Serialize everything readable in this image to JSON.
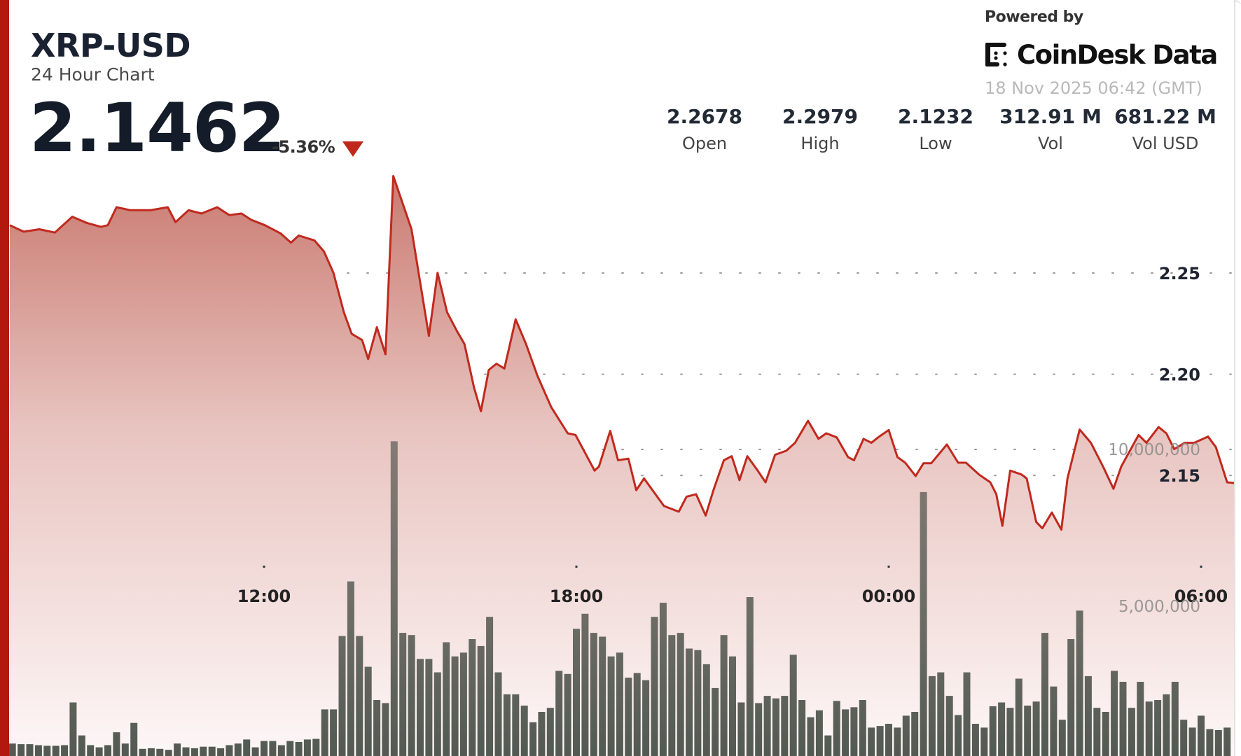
{
  "header": {
    "symbol": "XRP-USD",
    "subtitle": "24 Hour Chart",
    "price": "2.1462",
    "change": "-5.36%",
    "change_direction_icon": "triangle-down-icon",
    "powered_by": "Powered by",
    "brand": "CoinDesk Data",
    "timestamp": "18 Nov 2025 06:42 (GMT)"
  },
  "stats": [
    {
      "value": "2.2678",
      "label": "Open"
    },
    {
      "value": "2.2979",
      "label": "High"
    },
    {
      "value": "2.1232",
      "label": "Low"
    },
    {
      "value": "312.91 M",
      "label": "Vol"
    },
    {
      "value": "681.22 M",
      "label": "Vol USD"
    }
  ],
  "colors": {
    "accent": "#b3180f",
    "line": "#c0291e",
    "fill_top": "#c8766c",
    "volume_bar": "#575c55",
    "down": "#c0281c"
  },
  "chart_data": {
    "type": "area",
    "grid": "dotted horizontal",
    "price_axis": {
      "ticks": [
        "2.25",
        "2.20",
        "2.15"
      ],
      "tick_values": [
        2.25,
        2.2,
        2.15
      ],
      "side": "right"
    },
    "volume_axis": {
      "ticks": [
        "10,000,000",
        "5,000,000"
      ],
      "tick_values": [
        10000000,
        5000000
      ],
      "side": "right"
    },
    "x_axis": {
      "ticks": [
        "12:00",
        "18:00",
        "00:00",
        "06:00"
      ]
    },
    "price_series": [
      [
        "07:07",
        2.2736
      ],
      [
        "07:23",
        2.2704
      ],
      [
        "07:41",
        2.2716
      ],
      [
        "07:59",
        2.27
      ],
      [
        "08:19",
        2.2778
      ],
      [
        "08:36",
        2.2747
      ],
      [
        "08:52",
        2.2728
      ],
      [
        "09:00",
        2.2736
      ],
      [
        "09:10",
        2.2825
      ],
      [
        "09:26",
        2.281
      ],
      [
        "09:49",
        2.281
      ],
      [
        "10:09",
        2.2825
      ],
      [
        "10:18",
        2.2751
      ],
      [
        "10:33",
        2.281
      ],
      [
        "10:48",
        2.2794
      ],
      [
        "11:06",
        2.2825
      ],
      [
        "11:20",
        2.2786
      ],
      [
        "11:34",
        2.2794
      ],
      [
        "11:45",
        2.2763
      ],
      [
        "12:01",
        2.2736
      ],
      [
        "12:19",
        2.2696
      ],
      [
        "12:31",
        2.265
      ],
      [
        "12:40",
        2.2685
      ],
      [
        "12:58",
        2.2661
      ],
      [
        "13:09",
        2.2607
      ],
      [
        "13:20",
        2.2501
      ],
      [
        "13:32",
        2.2306
      ],
      [
        "13:41",
        2.22
      ],
      [
        "13:53",
        2.2169
      ],
      [
        "14:00",
        2.2075
      ],
      [
        "14:10",
        2.2232
      ],
      [
        "14:20",
        2.2099
      ],
      [
        "14:29",
        2.2979
      ],
      [
        "14:50",
        2.2716
      ],
      [
        "15:10",
        2.2189
      ],
      [
        "15:20",
        2.2501
      ],
      [
        "15:31",
        2.2306
      ],
      [
        "15:42",
        2.2216
      ],
      [
        "15:51",
        2.2149
      ],
      [
        "16:02",
        2.1935
      ],
      [
        "16:10",
        2.1817
      ],
      [
        "16:19",
        2.2021
      ],
      [
        "16:28",
        2.2052
      ],
      [
        "16:37",
        2.2028
      ],
      [
        "16:50",
        2.2271
      ],
      [
        "17:02",
        2.2149
      ],
      [
        "17:15",
        2.1993
      ],
      [
        "17:31",
        2.1837
      ],
      [
        "17:50",
        2.1708
      ],
      [
        "17:59",
        2.17
      ],
      [
        "18:21",
        2.1524
      ],
      [
        "18:26",
        2.1544
      ],
      [
        "18:39",
        2.172
      ],
      [
        "18:48",
        2.1575
      ],
      [
        "19:00",
        2.1583
      ],
      [
        "19:09",
        2.1427
      ],
      [
        "19:18",
        2.1485
      ],
      [
        "19:41",
        2.1349
      ],
      [
        "19:58",
        2.1321
      ],
      [
        "20:07",
        2.1395
      ],
      [
        "20:18",
        2.1407
      ],
      [
        "20:29",
        2.1302
      ],
      [
        "20:38",
        2.1427
      ],
      [
        "20:50",
        2.1575
      ],
      [
        "20:59",
        2.1595
      ],
      [
        "21:08",
        2.1477
      ],
      [
        "21:17",
        2.1595
      ],
      [
        "21:29",
        2.1524
      ],
      [
        "21:38",
        2.1466
      ],
      [
        "21:49",
        2.1602
      ],
      [
        "22:02",
        2.1622
      ],
      [
        "22:12",
        2.1661
      ],
      [
        "22:27",
        2.177
      ],
      [
        "22:39",
        2.1681
      ],
      [
        "22:48",
        2.1708
      ],
      [
        "23:00",
        2.1688
      ],
      [
        "23:13",
        2.1591
      ],
      [
        "23:20",
        2.1575
      ],
      [
        "23:31",
        2.1681
      ],
      [
        "23:40",
        2.1661
      ],
      [
        "23:49",
        2.1692
      ],
      [
        "00:00",
        2.1724
      ],
      [
        "00:10",
        2.1591
      ],
      [
        "00:19",
        2.1563
      ],
      [
        "00:31",
        2.1497
      ],
      [
        "00:40",
        2.156
      ],
      [
        "00:49",
        2.156
      ],
      [
        "01:07",
        2.1653
      ],
      [
        "01:20",
        2.1563
      ],
      [
        "01:29",
        2.1563
      ],
      [
        "01:44",
        2.1505
      ],
      [
        "01:57",
        2.1466
      ],
      [
        "02:04",
        2.1407
      ],
      [
        "02:11",
        2.1251
      ],
      [
        "02:20",
        2.1524
      ],
      [
        "02:33",
        2.1505
      ],
      [
        "02:39",
        2.1485
      ],
      [
        "02:50",
        2.127
      ],
      [
        "02:57",
        2.1239
      ],
      [
        "03:08",
        2.1317
      ],
      [
        "03:19",
        2.1232
      ],
      [
        "03:26",
        2.1485
      ],
      [
        "03:40",
        2.1727
      ],
      [
        "03:53",
        2.1661
      ],
      [
        "04:07",
        2.1544
      ],
      [
        "04:19",
        2.1434
      ],
      [
        "04:28",
        2.1544
      ],
      [
        "04:48",
        2.17
      ],
      [
        "04:57",
        2.1661
      ],
      [
        "05:11",
        2.1739
      ],
      [
        "05:20",
        2.1708
      ],
      [
        "05:29",
        2.163
      ],
      [
        "05:41",
        2.1661
      ],
      [
        "05:52",
        2.1661
      ],
      [
        "06:08",
        2.1692
      ],
      [
        "06:17",
        2.164
      ],
      [
        "06:30",
        2.1466
      ],
      [
        "06:39",
        2.1462
      ]
    ],
    "volume_series_millions": [
      [
        "07:10",
        0.62
      ],
      [
        "07:20",
        0.6
      ],
      [
        "07:30",
        0.6
      ],
      [
        "07:40",
        0.57
      ],
      [
        "07:50",
        0.55
      ],
      [
        "08:00",
        0.55
      ],
      [
        "08:10",
        0.57
      ],
      [
        "08:20",
        1.93
      ],
      [
        "08:30",
        0.88
      ],
      [
        "08:40",
        0.57
      ],
      [
        "08:50",
        0.5
      ],
      [
        "09:00",
        0.57
      ],
      [
        "09:10",
        0.98
      ],
      [
        "09:20",
        0.62
      ],
      [
        "09:30",
        1.28
      ],
      [
        "09:40",
        0.45
      ],
      [
        "09:50",
        0.47
      ],
      [
        "10:00",
        0.45
      ],
      [
        "10:10",
        0.42
      ],
      [
        "10:20",
        0.62
      ],
      [
        "10:30",
        0.5
      ],
      [
        "10:40",
        0.47
      ],
      [
        "10:50",
        0.52
      ],
      [
        "11:00",
        0.52
      ],
      [
        "11:10",
        0.47
      ],
      [
        "11:20",
        0.57
      ],
      [
        "11:30",
        0.62
      ],
      [
        "11:40",
        0.75
      ],
      [
        "11:50",
        0.5
      ],
      [
        "12:00",
        0.7
      ],
      [
        "12:10",
        0.7
      ],
      [
        "12:20",
        0.57
      ],
      [
        "12:30",
        0.7
      ],
      [
        "12:40",
        0.67
      ],
      [
        "12:50",
        0.75
      ],
      [
        "13:00",
        0.77
      ],
      [
        "13:10",
        1.71
      ],
      [
        "13:20",
        1.71
      ],
      [
        "13:30",
        4.05
      ],
      [
        "13:40",
        5.79
      ],
      [
        "13:50",
        4.05
      ],
      [
        "14:00",
        3.07
      ],
      [
        "14:10",
        2.01
      ],
      [
        "14:20",
        1.91
      ],
      [
        "14:30",
        10.26
      ],
      [
        "14:40",
        4.15
      ],
      [
        "14:50",
        4.08
      ],
      [
        "15:00",
        3.32
      ],
      [
        "15:10",
        3.32
      ],
      [
        "15:20",
        2.89
      ],
      [
        "15:30",
        3.85
      ],
      [
        "15:40",
        3.4
      ],
      [
        "15:50",
        3.52
      ],
      [
        "16:00",
        3.95
      ],
      [
        "16:10",
        3.73
      ],
      [
        "16:20",
        4.66
      ],
      [
        "16:30",
        2.89
      ],
      [
        "16:40",
        2.19
      ],
      [
        "16:50",
        2.19
      ],
      [
        "17:00",
        1.83
      ],
      [
        "17:10",
        1.3
      ],
      [
        "17:20",
        1.63
      ],
      [
        "17:30",
        1.76
      ],
      [
        "17:40",
        2.94
      ],
      [
        "17:50",
        2.84
      ],
      [
        "18:00",
        4.28
      ],
      [
        "18:10",
        4.76
      ],
      [
        "18:20",
        4.15
      ],
      [
        "18:30",
        4.03
      ],
      [
        "18:40",
        3.4
      ],
      [
        "18:50",
        3.52
      ],
      [
        "19:00",
        2.72
      ],
      [
        "19:10",
        2.87
      ],
      [
        "19:20",
        2.64
      ],
      [
        "19:30",
        4.66
      ],
      [
        "19:40",
        5.11
      ],
      [
        "19:50",
        4.08
      ],
      [
        "20:00",
        4.15
      ],
      [
        "20:10",
        3.65
      ],
      [
        "20:20",
        3.6
      ],
      [
        "20:30",
        3.15
      ],
      [
        "20:40",
        2.39
      ],
      [
        "20:50",
        4.08
      ],
      [
        "21:00",
        3.4
      ],
      [
        "21:10",
        1.93
      ],
      [
        "21:20",
        5.29
      ],
      [
        "21:30",
        1.91
      ],
      [
        "21:40",
        2.14
      ],
      [
        "21:50",
        2.06
      ],
      [
        "22:00",
        2.14
      ],
      [
        "22:10",
        3.45
      ],
      [
        "22:20",
        2.01
      ],
      [
        "22:30",
        1.46
      ],
      [
        "22:40",
        1.68
      ],
      [
        "22:50",
        0.88
      ],
      [
        "23:00",
        1.98
      ],
      [
        "23:10",
        1.71
      ],
      [
        "23:20",
        1.78
      ],
      [
        "23:30",
        2.01
      ],
      [
        "23:40",
        1.13
      ],
      [
        "23:50",
        1.18
      ],
      [
        "00:00",
        1.25
      ],
      [
        "00:10",
        1.13
      ],
      [
        "00:20",
        1.51
      ],
      [
        "00:30",
        1.63
      ],
      [
        "00:40",
        8.64
      ],
      [
        "00:50",
        2.77
      ],
      [
        "01:00",
        2.89
      ],
      [
        "01:10",
        2.14
      ],
      [
        "01:20",
        1.53
      ],
      [
        "01:30",
        2.89
      ],
      [
        "01:40",
        1.25
      ],
      [
        "01:50",
        1.13
      ],
      [
        "02:00",
        1.81
      ],
      [
        "02:10",
        1.93
      ],
      [
        "02:20",
        1.76
      ],
      [
        "02:30",
        2.69
      ],
      [
        "02:40",
        1.83
      ],
      [
        "02:50",
        1.96
      ],
      [
        "03:00",
        4.15
      ],
      [
        "03:10",
        2.44
      ],
      [
        "03:20",
        1.38
      ],
      [
        "03:30",
        3.95
      ],
      [
        "03:40",
        4.86
      ],
      [
        "03:50",
        2.77
      ],
      [
        "04:00",
        1.76
      ],
      [
        "04:10",
        1.63
      ],
      [
        "04:20",
        2.94
      ],
      [
        "04:30",
        2.59
      ],
      [
        "04:40",
        1.76
      ],
      [
        "04:50",
        2.59
      ],
      [
        "05:00",
        1.96
      ],
      [
        "05:10",
        2.01
      ],
      [
        "05:20",
        2.19
      ],
      [
        "05:30",
        2.59
      ],
      [
        "05:40",
        1.38
      ],
      [
        "05:50",
        1.13
      ],
      [
        "06:00",
        1.51
      ],
      [
        "06:10",
        1.08
      ],
      [
        "06:20",
        1.05
      ],
      [
        "06:30",
        1.13
      ]
    ]
  }
}
